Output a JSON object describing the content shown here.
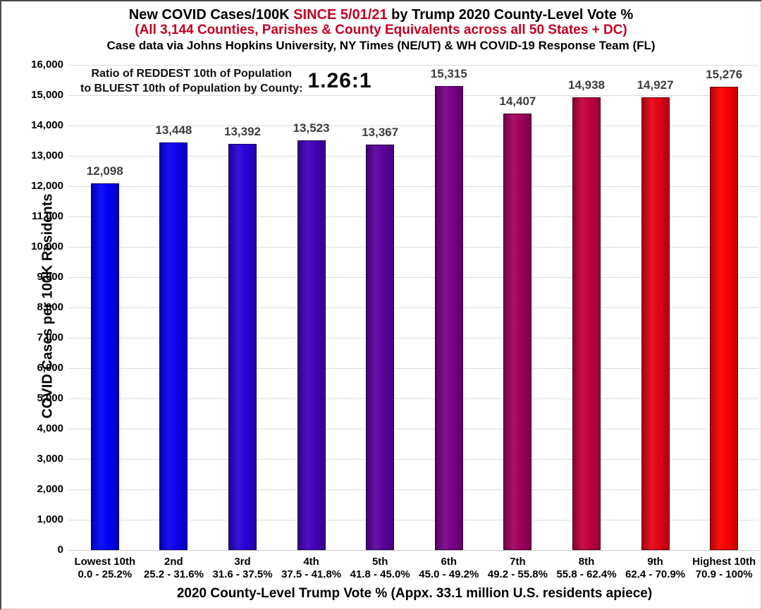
{
  "header": {
    "title_line1_pre": "New COVID Cases/100K ",
    "title_line1_highlight": "SINCE 5/01/21",
    "title_line1_post": " by Trump 2020 County-Level Vote %",
    "title_line2": "(All 3,144 Counties, Parishes & County Equivalents across all 50 States + DC)",
    "title_line3": "Case data via Johns Hopkins University, NY Times (NE/UT) & WH COVID-19 Response Team (FL)"
  },
  "annotation": {
    "line1": "Ratio of REDDEST 10th of Population",
    "line2": "to BLUEST 10th of Population by County:",
    "ratio": "1.26:1"
  },
  "chart_data": {
    "type": "bar",
    "title": "New COVID Cases/100K SINCE 5/01/21 by Trump 2020 County-Level Vote %",
    "subtitle": "(All 3,144 Counties, Parishes & County Equivalents across all 50 States + DC)",
    "source_note": "Case data via Johns Hopkins University, NY Times (NE/UT) & WH COVID-19 Response Team (FL)",
    "categories": [
      "Lowest 10th",
      "2nd",
      "3rd",
      "4th",
      "5th",
      "6th",
      "7th",
      "8th",
      "9th",
      "Highest 10th"
    ],
    "category_ranges": [
      "0.0 - 25.2%",
      "25.2 - 31.6%",
      "31.6 - 37.5%",
      "37.5 - 41.8%",
      "41.8 - 45.0%",
      "45.0 - 49.2%",
      "49.2 - 55.8%",
      "55.8 - 62.4%",
      "62.4 - 70.9%",
      "70.9 - 100%"
    ],
    "values": [
      12098,
      13448,
      13392,
      13523,
      13367,
      15315,
      14407,
      14938,
      14927,
      15276
    ],
    "value_labels": [
      "12,098",
      "13,448",
      "13,392",
      "13,523",
      "13,367",
      "15,315",
      "14,407",
      "14,938",
      "14,927",
      "15,276"
    ],
    "bar_colors": [
      "#0202fe",
      "#0d02f2",
      "#2a02da",
      "#4402bc",
      "#5d02a0",
      "#7a0288",
      "#a30260",
      "#c30240",
      "#e60417",
      "#fc0200"
    ],
    "xlabel": "2020 County-Level Trump Vote % (Appx. 33.1 million U.S. residents apiece)",
    "ylabel": "COVID Cases per 100K Residents",
    "ylim": [
      0,
      16000
    ],
    "ytick_step": 1000,
    "grid": true,
    "legend": "none",
    "annotation_ratio": "1.26:1",
    "colors": {
      "accent_red": "#c40023",
      "grid": "#dcdcdc",
      "value_label_gray": "#3d3d3d"
    }
  }
}
